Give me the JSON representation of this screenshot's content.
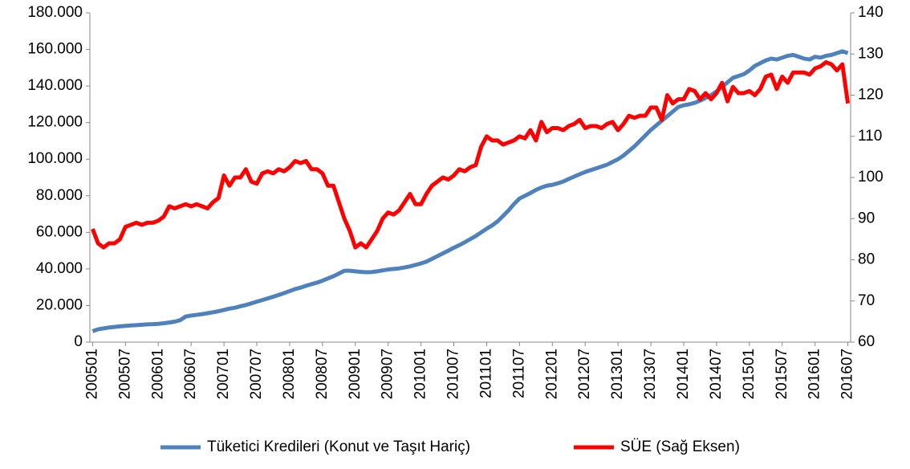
{
  "chart_data": {
    "type": "line",
    "categories": [
      "200501",
      null,
      null,
      null,
      null,
      null,
      "200507",
      null,
      null,
      null,
      null,
      null,
      "200601",
      null,
      null,
      null,
      null,
      null,
      "200607",
      null,
      null,
      null,
      null,
      null,
      "200701",
      null,
      null,
      null,
      null,
      null,
      "200707",
      null,
      null,
      null,
      null,
      null,
      "200801",
      null,
      null,
      null,
      null,
      null,
      "200807",
      null,
      null,
      null,
      null,
      null,
      "200901",
      null,
      null,
      null,
      null,
      null,
      "200907",
      null,
      null,
      null,
      null,
      null,
      "201001",
      null,
      null,
      null,
      null,
      null,
      "201007",
      null,
      null,
      null,
      null,
      null,
      "201101",
      null,
      null,
      null,
      null,
      null,
      "201107",
      null,
      null,
      null,
      null,
      null,
      "201201",
      null,
      null,
      null,
      null,
      null,
      "201207",
      null,
      null,
      null,
      null,
      null,
      "201301",
      null,
      null,
      null,
      null,
      null,
      "201307",
      null,
      null,
      null,
      null,
      null,
      "201401",
      null,
      null,
      null,
      null,
      null,
      "201407",
      null,
      null,
      null,
      null,
      null,
      "201501",
      null,
      null,
      null,
      null,
      null,
      "201507",
      null,
      null,
      null,
      null,
      null,
      "201601",
      null,
      null,
      null,
      null,
      null,
      "201607"
    ],
    "series": [
      {
        "name": "Tüketici Kredileri (Konut ve Taşıt Hariç)",
        "color": "#4f81bd",
        "values": [
          6000,
          7000,
          7500,
          8000,
          8300,
          8600,
          8900,
          9100,
          9300,
          9500,
          9700,
          9800,
          10000,
          10300,
          10700,
          11200,
          12000,
          14000,
          14500,
          14900,
          15300,
          15800,
          16300,
          16900,
          17600,
          18300,
          18800,
          19600,
          20300,
          21200,
          22100,
          23000,
          23900,
          24800,
          25800,
          26800,
          27900,
          29000,
          29800,
          30800,
          31700,
          32500,
          33600,
          34800,
          36000,
          37500,
          39000,
          39000,
          38700,
          38400,
          38200,
          38300,
          38700,
          39200,
          39700,
          40000,
          40300,
          40800,
          41400,
          42200,
          43000,
          44000,
          45500,
          47000,
          48500,
          50000,
          51600,
          53000,
          54600,
          56300,
          58000,
          60000,
          62000,
          63800,
          66000,
          69000,
          72000,
          75500,
          78500,
          80000,
          81500,
          83200,
          84500,
          85500,
          86000,
          86800,
          87800,
          89200,
          90500,
          91800,
          93000,
          94000,
          95000,
          96000,
          97000,
          98500,
          100000,
          102000,
          104500,
          107000,
          110000,
          113000,
          116000,
          118500,
          121000,
          123500,
          126000,
          128500,
          129500,
          130000,
          130800,
          132000,
          133500,
          135000,
          137000,
          139500,
          142000,
          144500,
          145500,
          146500,
          148500,
          151000,
          152500,
          154000,
          155000,
          154500,
          155500,
          156500,
          157000,
          156000,
          155000,
          154500,
          156000,
          155500,
          156500,
          157000,
          158000,
          159000,
          158000
        ]
      },
      {
        "name": "SÜE (Sağ Eksen)",
        "color": "#ff0000",
        "axis": "y2",
        "values": [
          87.5,
          84,
          83,
          84,
          84,
          85,
          88,
          88.5,
          89,
          88.5,
          89,
          89,
          89.5,
          90.5,
          93,
          92.5,
          93,
          93.5,
          93,
          93.5,
          93,
          92.5,
          94,
          95,
          100.5,
          98,
          100,
          100,
          102,
          99,
          98.5,
          101,
          101.5,
          101,
          102,
          101.5,
          102.5,
          104,
          103.5,
          104,
          102,
          102,
          101,
          98,
          98,
          94,
          90,
          87,
          83,
          84,
          83,
          85,
          87,
          90,
          91.5,
          91,
          92,
          94,
          96,
          93.5,
          93.5,
          96,
          98,
          99,
          100,
          99.5,
          100.5,
          102,
          101.5,
          102.5,
          103,
          107.5,
          110,
          109,
          109,
          108,
          108.5,
          109,
          110,
          109.5,
          111.5,
          109,
          113.5,
          111,
          112,
          112,
          111.5,
          112.5,
          113,
          114,
          112,
          112.5,
          112.5,
          112,
          113,
          113.5,
          111.5,
          113,
          115,
          114.5,
          115,
          115,
          117,
          117,
          114,
          120,
          118,
          119,
          119,
          121.5,
          121,
          119,
          120.5,
          119,
          120.5,
          123,
          118.5,
          122,
          120.5,
          120.5,
          121,
          120,
          121.5,
          124.5,
          125,
          121.5,
          124.5,
          123,
          125.5,
          125.5,
          125.5,
          125,
          126.5,
          127,
          128,
          127.5,
          126,
          127.5,
          118
        ]
      }
    ],
    "ylim": [
      0,
      180000
    ],
    "yticks": [
      0,
      {
        "value": 20000,
        "label": "20.000"
      },
      {
        "value": 40000,
        "label": "40.000"
      },
      {
        "value": 60000,
        "label": "60.000"
      },
      {
        "value": 80000,
        "label": "80.000"
      },
      {
        "value": 100000,
        "label": "100.000"
      },
      {
        "value": 120000,
        "label": "120.000"
      },
      {
        "value": 140000,
        "label": "140.000"
      },
      {
        "value": 160000,
        "label": "160.000"
      },
      {
        "value": 180000,
        "label": "180.000"
      }
    ],
    "y2lim": [
      60,
      140
    ],
    "y2ticks": [
      60,
      70,
      80,
      90,
      100,
      110,
      120,
      130,
      140
    ],
    "grid": false,
    "legend": "bottom"
  }
}
